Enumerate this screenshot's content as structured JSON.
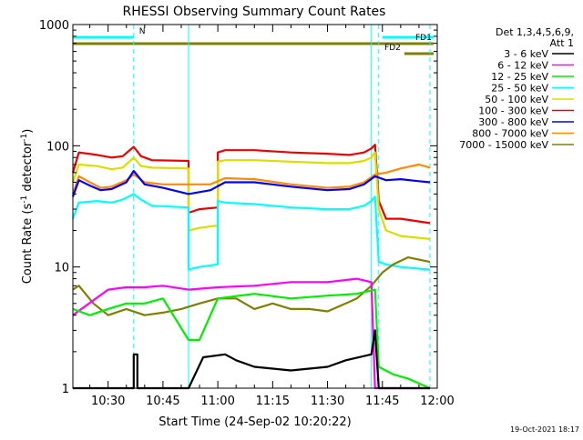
{
  "chart_data": {
    "type": "line",
    "title": "RHESSI Observing Summary Count Rates",
    "xlabel": "Start Time (24-Sep-02 10:20:22)",
    "ylabel_prefix": "Count Rate (s",
    "ylabel_sup1": "-1",
    "ylabel_mid": " detector",
    "ylabel_sup2": "-1",
    "ylabel_suffix": ")",
    "y_scale": "log",
    "ylim": [
      1,
      1000
    ],
    "xlim": [
      "10:20:22",
      "12:00"
    ],
    "x_ticks": [
      "10:30",
      "10:45",
      "11:00",
      "11:15",
      "11:30",
      "11:45",
      "12:00"
    ],
    "y_ticks": [
      "1",
      "10",
      "100",
      "1000"
    ],
    "grid": false,
    "footer_date": "19-Oct-2021 18:17",
    "legend": {
      "placement": "right",
      "header_line1": "Det 1,3,4,5,6,9,",
      "header_line2": "Att 1",
      "entries": [
        {
          "label": "3 - 6 keV",
          "color": "#000000"
        },
        {
          "label": "6 - 12 keV",
          "color": "#ff00ff"
        },
        {
          "label": "12 - 25 keV",
          "color": "#00ee00"
        },
        {
          "label": "25 - 50 keV",
          "color": "#00ffff"
        },
        {
          "label": "50 - 100 keV",
          "color": "#dddd00"
        },
        {
          "label": "100 - 300 keV",
          "color": "#ee0000"
        },
        {
          "label": "300 - 800 keV",
          "color": "#0000ff"
        },
        {
          "label": "800 - 7000 keV",
          "color": "#ff8c00"
        },
        {
          "label": "7000 - 15000 keV",
          "color": "#808000"
        }
      ]
    },
    "flags": [
      {
        "label": "N",
        "color": "#00ffff",
        "segments": [
          [
            "10:20:22",
            "10:37"
          ],
          [
            "11:45",
            "11:59"
          ]
        ]
      },
      {
        "label": "FD1",
        "color": "#808000",
        "segments": [
          [
            "10:20:22",
            "11:59"
          ]
        ]
      },
      {
        "label": "FD2",
        "color": "#808000",
        "segments": [
          [
            "11:51",
            "11:59"
          ]
        ]
      }
    ],
    "vertical_markers": [
      {
        "time": "10:20:22",
        "color": "#00ffff",
        "style": "solid"
      },
      {
        "time": "10:37",
        "color": "#00ffff",
        "style": "dashed"
      },
      {
        "time": "10:52",
        "color": "#00ffff",
        "style": "solid"
      },
      {
        "time": "11:42",
        "color": "#00ffff",
        "style": "solid"
      },
      {
        "time": "11:44",
        "color": "#00ffff",
        "style": "dashed"
      },
      {
        "time": "11:58",
        "color": "#00ffff",
        "style": "dashed"
      }
    ],
    "series": [
      {
        "name": "100 - 300 keV",
        "color": "#ee0000",
        "x": [
          "10:20:22",
          "10:22",
          "10:27",
          "10:31",
          "10:34",
          "10:37",
          "10:39",
          "10:42",
          "10:52",
          "10:52",
          "10:55",
          "11:00",
          "11:00",
          "11:02",
          "11:10",
          "11:20",
          "11:30",
          "11:36",
          "11:40",
          "11:42",
          "11:43",
          "11:44",
          "11:46",
          "11:50",
          "11:58"
        ],
        "y": [
          60,
          88,
          84,
          80,
          82,
          98,
          82,
          76,
          75,
          28,
          30,
          31,
          88,
          92,
          92,
          88,
          86,
          84,
          88,
          95,
          102,
          35,
          25,
          25,
          23
        ]
      },
      {
        "name": "50 - 100 keV",
        "color": "#dddd00",
        "x": [
          "10:20:22",
          "10:22",
          "10:27",
          "10:31",
          "10:34",
          "10:37",
          "10:39",
          "10:42",
          "10:52",
          "10:52",
          "10:55",
          "11:00",
          "11:00",
          "11:02",
          "11:10",
          "11:20",
          "11:30",
          "11:36",
          "11:40",
          "11:42",
          "11:43",
          "11:44",
          "11:46",
          "11:50",
          "11:58"
        ],
        "y": [
          50,
          70,
          68,
          64,
          66,
          80,
          68,
          66,
          65,
          20,
          21,
          22,
          74,
          76,
          76,
          74,
          72,
          72,
          75,
          80,
          88,
          30,
          20,
          18,
          17
        ]
      },
      {
        "name": "25 - 50 keV",
        "color": "#00ffff",
        "x": [
          "10:20:22",
          "10:22",
          "10:27",
          "10:31",
          "10:34",
          "10:37",
          "10:39",
          "10:42",
          "10:52",
          "10:52",
          "10:55",
          "11:00",
          "11:00",
          "11:02",
          "11:10",
          "11:20",
          "11:30",
          "11:36",
          "11:40",
          "11:42",
          "11:43",
          "11:44",
          "11:46",
          "11:50",
          "11:58"
        ],
        "y": [
          25,
          34,
          35,
          34,
          36,
          40,
          36,
          32,
          31,
          9.5,
          10,
          10.5,
          35,
          34,
          33,
          31,
          30,
          30,
          32,
          35,
          38,
          11,
          10.5,
          10,
          9.5
        ]
      },
      {
        "name": "800 - 7000 keV",
        "color": "#ff8c00",
        "x": [
          "10:20:22",
          "10:22",
          "10:25",
          "10:28",
          "10:31",
          "10:35",
          "10:37",
          "10:40",
          "10:45",
          "10:52",
          "10:58",
          "11:02",
          "11:10",
          "11:20",
          "11:30",
          "11:36",
          "11:40",
          "11:43",
          "11:46",
          "11:50",
          "11:55",
          "11:58"
        ],
        "y": [
          40,
          56,
          50,
          45,
          46,
          52,
          58,
          50,
          48,
          48,
          48,
          54,
          53,
          48,
          45,
          46,
          50,
          58,
          60,
          65,
          70,
          66
        ]
      },
      {
        "name": "300 - 800 keV",
        "color": "#0000ff",
        "x": [
          "10:20:22",
          "10:22",
          "10:25",
          "10:28",
          "10:31",
          "10:35",
          "10:37",
          "10:40",
          "10:45",
          "10:52",
          "10:58",
          "11:02",
          "11:10",
          "11:20",
          "11:30",
          "11:36",
          "11:40",
          "11:43",
          "11:46",
          "11:50",
          "11:55",
          "11:58"
        ],
        "y": [
          38,
          52,
          47,
          43,
          44,
          50,
          62,
          48,
          45,
          40,
          43,
          50,
          50,
          46,
          43,
          44,
          48,
          56,
          52,
          53,
          51,
          50
        ]
      },
      {
        "name": "7000 - 15000 keV",
        "color": "#808000",
        "x": [
          "10:20:22",
          "10:22",
          "10:26",
          "10:30",
          "10:35",
          "10:40",
          "10:45",
          "10:50",
          "10:55",
          "11:00",
          "11:05",
          "11:10",
          "11:15",
          "11:20",
          "11:25",
          "11:30",
          "11:35",
          "11:38",
          "11:42",
          "11:45",
          "11:48",
          "11:52",
          "11:55",
          "11:58"
        ],
        "y": [
          6.5,
          7,
          5,
          4,
          4.5,
          4,
          4.2,
          4.5,
          5,
          5.5,
          5.5,
          4.5,
          5,
          4.5,
          4.5,
          4.3,
          5,
          5.5,
          7,
          9,
          10.5,
          12,
          11.5,
          11
        ]
      },
      {
        "name": "6 - 12 keV",
        "color": "#ff00ff",
        "x": [
          "10:20:22",
          "10:30",
          "10:35",
          "10:40",
          "10:45",
          "10:52",
          "11:00",
          "11:10",
          "11:20",
          "11:30",
          "11:38",
          "11:42",
          "11:43",
          "11:44",
          "11:58"
        ],
        "y": [
          4,
          6.5,
          6.8,
          6.8,
          7,
          6.5,
          6.8,
          7,
          7.5,
          7.5,
          8,
          7.5,
          1,
          1,
          1
        ]
      },
      {
        "name": "12 - 25 keV",
        "color": "#00ee00",
        "x": [
          "10:20:22",
          "10:25",
          "10:30",
          "10:35",
          "10:40",
          "10:45",
          "10:52",
          "10:55",
          "11:00",
          "11:10",
          "11:20",
          "11:30",
          "11:38",
          "11:43",
          "11:44",
          "11:48",
          "11:52",
          "11:58"
        ],
        "y": [
          4.5,
          4,
          4.5,
          5,
          5,
          5.5,
          2.5,
          2.5,
          5.5,
          6,
          5.5,
          5.8,
          6,
          6.5,
          1.5,
          1.3,
          1.2,
          1
        ]
      },
      {
        "name": "3 - 6 keV",
        "color": "#000000",
        "x": [
          "10:20:22",
          "10:37",
          "10:37",
          "10:38",
          "10:38",
          "10:52",
          "10:56",
          "11:02",
          "11:05",
          "11:10",
          "11:20",
          "11:30",
          "11:35",
          "11:42",
          "11:43",
          "11:44",
          "11:58"
        ],
        "y": [
          1,
          1,
          1.9,
          1.9,
          1,
          1,
          1.8,
          1.9,
          1.7,
          1.5,
          1.4,
          1.5,
          1.7,
          1.9,
          3,
          1,
          1
        ]
      }
    ]
  }
}
